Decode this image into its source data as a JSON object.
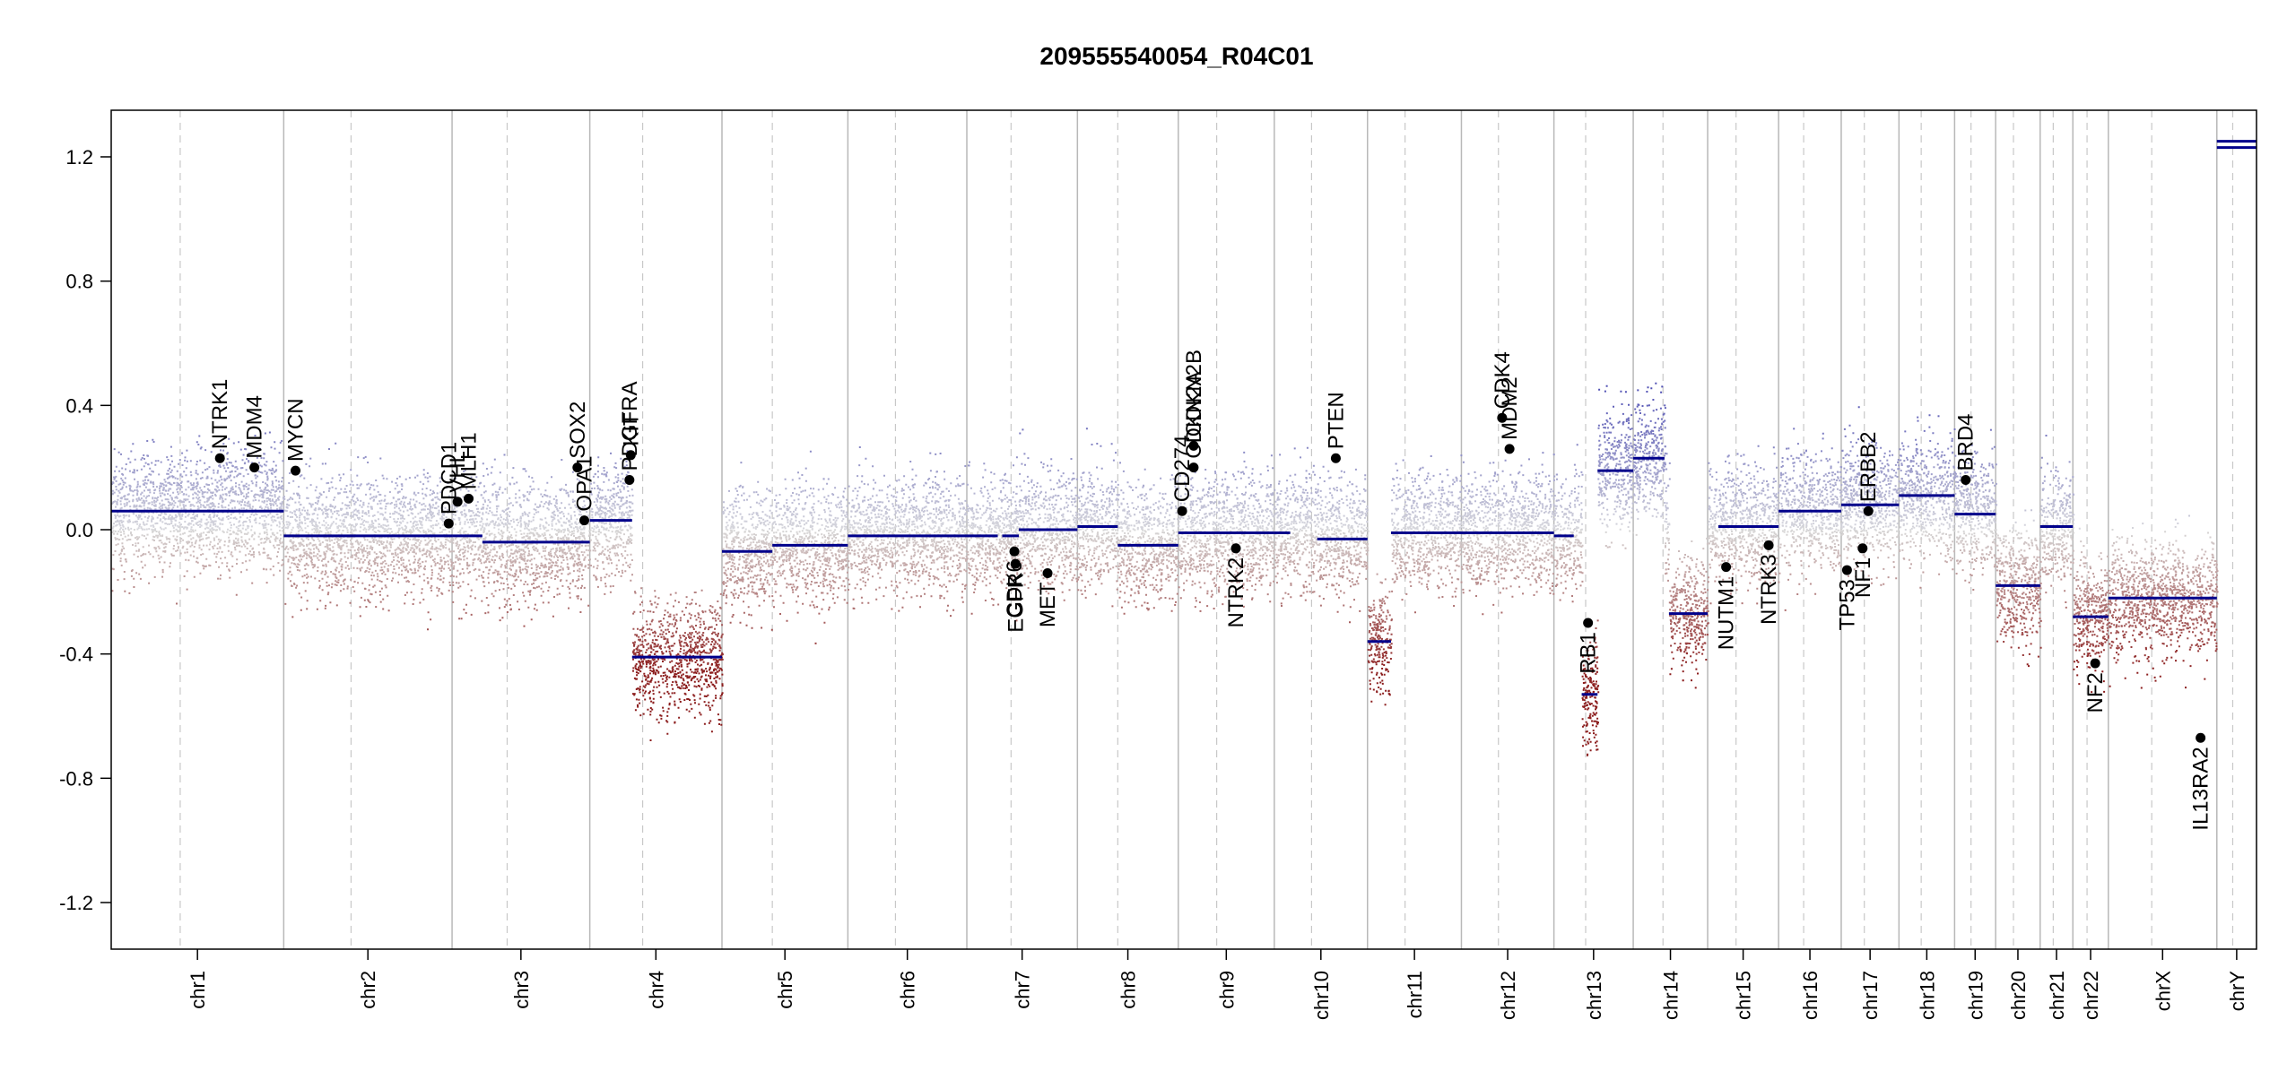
{
  "chart_data": {
    "type": "scatter",
    "title": "209555540054_R04C01",
    "xlabel": "",
    "ylabel": "",
    "ylim": [
      -1.35,
      1.35
    ],
    "yticks": [
      -1.2,
      -0.8,
      -0.4,
      0.0,
      0.4,
      0.8,
      1.2
    ],
    "ytick_labels": [
      "-1.2",
      "-0.8",
      "-0.4",
      "0.0",
      "0.4",
      "0.8",
      "1.2"
    ],
    "chromosomes": [
      {
        "name": "chr1",
        "size": 248
      },
      {
        "name": "chr2",
        "size": 242
      },
      {
        "name": "chr3",
        "size": 198
      },
      {
        "name": "chr4",
        "size": 190
      },
      {
        "name": "chr5",
        "size": 181
      },
      {
        "name": "chr6",
        "size": 171
      },
      {
        "name": "chr7",
        "size": 159
      },
      {
        "name": "chr8",
        "size": 145
      },
      {
        "name": "chr9",
        "size": 138
      },
      {
        "name": "chr10",
        "size": 134
      },
      {
        "name": "chr11",
        "size": 135
      },
      {
        "name": "chr12",
        "size": 133
      },
      {
        "name": "chr13",
        "size": 114
      },
      {
        "name": "chr14",
        "size": 107
      },
      {
        "name": "chr15",
        "size": 102
      },
      {
        "name": "chr16",
        "size": 90
      },
      {
        "name": "chr17",
        "size": 83
      },
      {
        "name": "chr18",
        "size": 80
      },
      {
        "name": "chr19",
        "size": 59
      },
      {
        "name": "chr20",
        "size": 64
      },
      {
        "name": "chr21",
        "size": 47
      },
      {
        "name": "chr22",
        "size": 51
      },
      {
        "name": "chrX",
        "size": 156
      },
      {
        "name": "chrY",
        "size": 57
      }
    ],
    "segments": [
      {
        "chr": "chr1",
        "start": 0,
        "end": 1,
        "value": 0.06
      },
      {
        "chr": "chr2",
        "start": 0,
        "end": 1,
        "value": -0.02
      },
      {
        "chr": "chr3",
        "start": 0,
        "end": 0.22,
        "value": -0.02
      },
      {
        "chr": "chr3",
        "start": 0.22,
        "end": 1,
        "value": -0.04
      },
      {
        "chr": "chr4",
        "start": 0,
        "end": 0.32,
        "value": 0.03
      },
      {
        "chr": "chr4",
        "start": 0.32,
        "end": 1,
        "value": -0.41
      },
      {
        "chr": "chr5",
        "start": 0,
        "end": 0.4,
        "value": -0.07
      },
      {
        "chr": "chr5",
        "start": 0.4,
        "end": 1,
        "value": -0.05
      },
      {
        "chr": "chr6",
        "start": 0,
        "end": 1,
        "value": -0.02
      },
      {
        "chr": "chr7",
        "start": 0,
        "end": 0.28,
        "value": -0.02
      },
      {
        "chr": "chr7",
        "start": 0.32,
        "end": 0.47,
        "value": -0.02
      },
      {
        "chr": "chr7",
        "start": 0.47,
        "end": 1,
        "value": 0.0
      },
      {
        "chr": "chr8",
        "start": 0,
        "end": 0.4,
        "value": 0.01
      },
      {
        "chr": "chr8",
        "start": 0.4,
        "end": 1,
        "value": -0.05
      },
      {
        "chr": "chr9",
        "start": 0,
        "end": 1,
        "value": -0.01
      },
      {
        "chr": "chr10",
        "start": 0,
        "end": 0.17,
        "value": -0.01
      },
      {
        "chr": "chr10",
        "start": 0.46,
        "end": 1,
        "value": -0.03
      },
      {
        "chr": "chr11",
        "start": 0,
        "end": 0.25,
        "value": -0.36
      },
      {
        "chr": "chr11",
        "start": 0.25,
        "end": 1,
        "value": -0.01
      },
      {
        "chr": "chr12",
        "start": 0,
        "end": 1,
        "value": -0.01
      },
      {
        "chr": "chr13",
        "start": 0,
        "end": 0.25,
        "value": -0.02
      },
      {
        "chr": "chr13",
        "start": 0.35,
        "end": 0.55,
        "value": -0.53
      },
      {
        "chr": "chr13",
        "start": 0.55,
        "end": 1,
        "value": 0.19
      },
      {
        "chr": "chr14",
        "start": 0,
        "end": 0.42,
        "value": 0.23
      },
      {
        "chr": "chr14",
        "start": 0.48,
        "end": 1,
        "value": -0.27
      },
      {
        "chr": "chr15",
        "start": 0.15,
        "end": 1,
        "value": 0.01
      },
      {
        "chr": "chr16",
        "start": 0,
        "end": 1,
        "value": 0.06
      },
      {
        "chr": "chr17",
        "start": 0,
        "end": 1,
        "value": 0.08
      },
      {
        "chr": "chr18",
        "start": 0,
        "end": 1,
        "value": 0.11
      },
      {
        "chr": "chr19",
        "start": 0,
        "end": 1,
        "value": 0.05
      },
      {
        "chr": "chr20",
        "start": 0,
        "end": 1,
        "value": -0.18
      },
      {
        "chr": "chr21",
        "start": 0,
        "end": 1,
        "value": 0.01
      },
      {
        "chr": "chr22",
        "start": 0,
        "end": 1,
        "value": -0.28
      },
      {
        "chr": "chrX",
        "start": 0,
        "end": 1,
        "value": -0.22
      },
      {
        "chr": "chrY",
        "start": 0,
        "end": 1,
        "value": 1.23
      },
      {
        "chr": "chrY",
        "start": 0,
        "end": 1,
        "value": 1.25
      }
    ],
    "genes": [
      {
        "name": "NTRK1",
        "chr": "chr1",
        "pos": 0.63,
        "value": 0.23
      },
      {
        "name": "MDM4",
        "chr": "chr1",
        "pos": 0.83,
        "value": 0.2
      },
      {
        "name": "MYCN",
        "chr": "chr2",
        "pos": 0.07,
        "value": 0.19
      },
      {
        "name": "PDCD1",
        "chr": "chr2",
        "pos": 0.98,
        "value": 0.02
      },
      {
        "name": "VHL",
        "chr": "chr3",
        "pos": 0.04,
        "value": 0.09
      },
      {
        "name": "MLH1",
        "chr": "chr3",
        "pos": 0.12,
        "value": 0.1
      },
      {
        "name": "SOX2",
        "chr": "chr3",
        "pos": 0.91,
        "value": 0.2
      },
      {
        "name": "OPA1",
        "chr": "chr3",
        "pos": 0.96,
        "value": 0.03
      },
      {
        "name": "PDGFRA",
        "chr": "chr4",
        "pos": 0.3,
        "value": 0.16
      },
      {
        "name": "KIT",
        "chr": "chr4",
        "pos": 0.31,
        "value": 0.24
      },
      {
        "name": "EGFR",
        "chr": "chr7",
        "pos": 0.44,
        "value": -0.11
      },
      {
        "name": "CDK6",
        "chr": "chr7",
        "pos": 0.43,
        "value": -0.07
      },
      {
        "name": "MET",
        "chr": "chr7",
        "pos": 0.73,
        "value": -0.14
      },
      {
        "name": "CD274",
        "chr": "chr9",
        "pos": 0.04,
        "value": 0.06
      },
      {
        "name": "CDKN2A",
        "chr": "chr9",
        "pos": 0.16,
        "value": 0.2
      },
      {
        "name": "CDKN2B",
        "chr": "chr9",
        "pos": 0.16,
        "value": 0.27
      },
      {
        "name": "NTRK2",
        "chr": "chr9",
        "pos": 0.6,
        "value": -0.06
      },
      {
        "name": "PTEN",
        "chr": "chr10",
        "pos": 0.66,
        "value": 0.23
      },
      {
        "name": "MDM2",
        "chr": "chr12",
        "pos": 0.52,
        "value": 0.26
      },
      {
        "name": "CDK4",
        "chr": "chr12",
        "pos": 0.44,
        "value": 0.36
      },
      {
        "name": "RB1",
        "chr": "chr13",
        "pos": 0.43,
        "value": -0.3
      },
      {
        "name": "NUTM1",
        "chr": "chr15",
        "pos": 0.26,
        "value": -0.12
      },
      {
        "name": "NTRK3",
        "chr": "chr15",
        "pos": 0.86,
        "value": -0.05
      },
      {
        "name": "TP53",
        "chr": "chr17",
        "pos": 0.1,
        "value": -0.13
      },
      {
        "name": "NF1",
        "chr": "chr17",
        "pos": 0.37,
        "value": -0.06
      },
      {
        "name": "ERBB2",
        "chr": "chr17",
        "pos": 0.47,
        "value": 0.06
      },
      {
        "name": "BRD4",
        "chr": "chr19",
        "pos": 0.27,
        "value": 0.16
      },
      {
        "name": "NF2",
        "chr": "chr22",
        "pos": 0.63,
        "value": -0.43
      },
      {
        "name": "IL13RA2",
        "chr": "chrX",
        "pos": 0.85,
        "value": -0.67
      }
    ],
    "grid": false,
    "legend": "none"
  }
}
